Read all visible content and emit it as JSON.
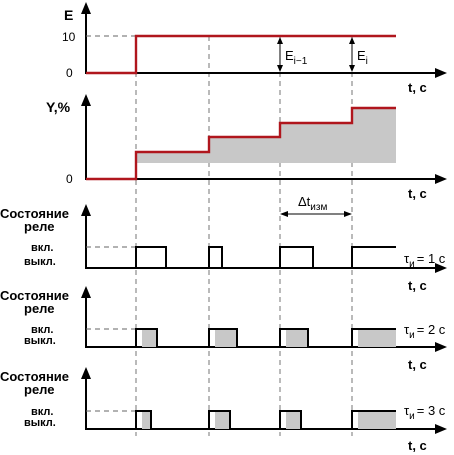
{
  "panels": {
    "error": {
      "ylabel": "E",
      "y_ticks": [
        "10",
        "0"
      ],
      "xlabel": "t, c",
      "annotations": [
        {
          "main": "E",
          "sub": "i−1"
        },
        {
          "main": "E",
          "sub": "i"
        }
      ]
    },
    "output": {
      "ylabel": "Y,%",
      "y_ticks": [
        "0"
      ],
      "xlabel": "t, c",
      "measure_interval": {
        "main": "Δt",
        "sub": "изм"
      }
    },
    "relays": [
      {
        "title_line1": "Состояние",
        "title_line2": "реле",
        "on_label": "вкл.",
        "off_label": "выкл.",
        "xlabel": "t, c",
        "tau": {
          "symbol": "τ",
          "sub": "и",
          "value": "= 1 c"
        }
      },
      {
        "title_line1": "Состояние",
        "title_line2": "реле",
        "on_label": "вкл.",
        "off_label": "выкл.",
        "xlabel": "t, c",
        "tau": {
          "symbol": "τ",
          "sub": "и",
          "value": "= 2 c"
        }
      },
      {
        "title_line1": "Состояние",
        "title_line2": "реле",
        "on_label": "вкл.",
        "off_label": "выкл.",
        "xlabel": "t, c",
        "tau": {
          "symbol": "τ",
          "sub": "и",
          "value": "= 3 c"
        }
      }
    ]
  },
  "colors": {
    "signal": "#b0161d",
    "fill": "#c8c8c8",
    "axis": "#000000",
    "guide": "#666666"
  }
}
